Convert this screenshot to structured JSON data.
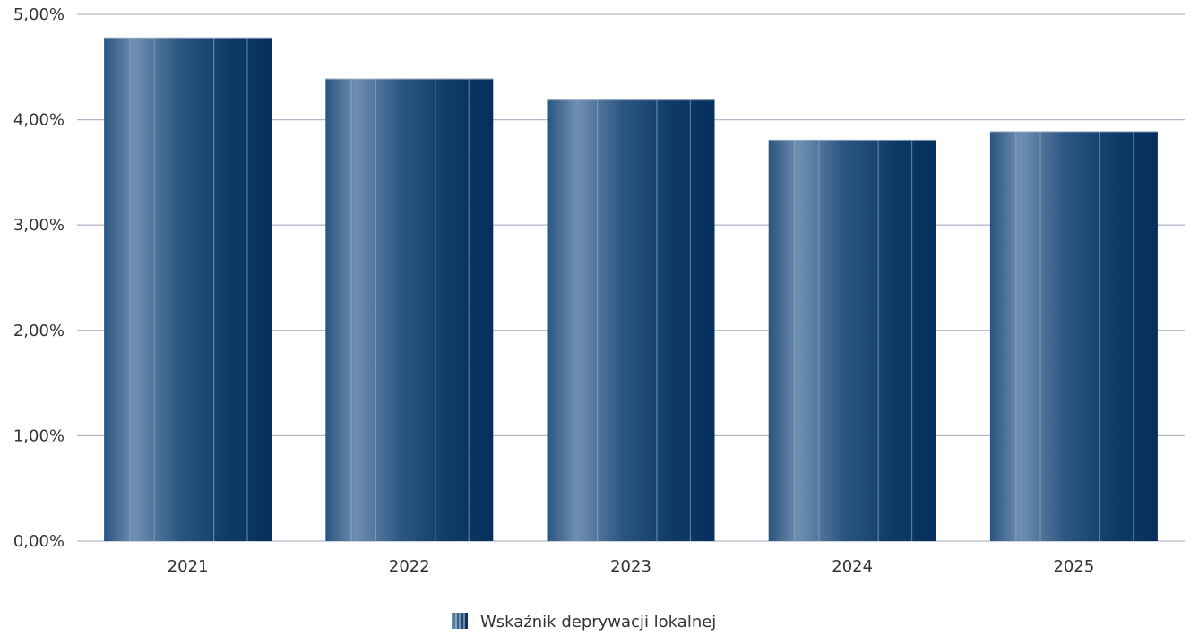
{
  "chart_data": {
    "type": "bar",
    "title": "",
    "xlabel": "",
    "ylabel": "",
    "categories": [
      "2021",
      "2022",
      "2023",
      "2024",
      "2025"
    ],
    "series": [
      {
        "name": "Wskaźnik deprywacji lokalnej",
        "values": [
          4.78,
          4.39,
          4.19,
          3.81,
          3.89
        ]
      }
    ],
    "ylim": [
      0,
      5
    ],
    "yticks": [
      0,
      1,
      2,
      3,
      4,
      5
    ],
    "ytick_labels": [
      "0,00%",
      "1,00%",
      "2,00%",
      "3,00%",
      "4,00%",
      "5,00%"
    ],
    "grid": true,
    "legend_position": "bottom-center",
    "colors": {
      "bar_dark": "#05305e",
      "bar_mid": "#2a5480",
      "bar_light": "#6f8fb0",
      "grid": "#b7b7c9"
    }
  }
}
